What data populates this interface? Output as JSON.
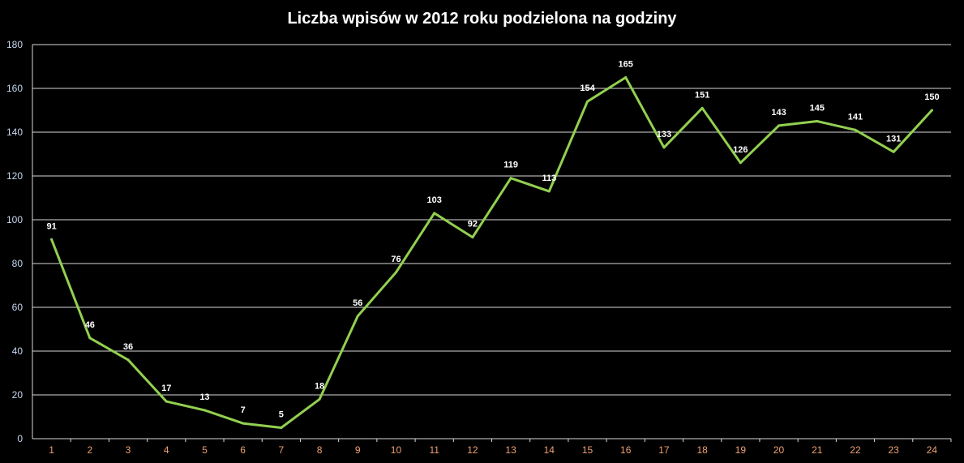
{
  "chart_data": {
    "type": "line",
    "title": "Liczba wpisów w 2012  roku podzielona na godziny",
    "xlabel": "",
    "ylabel": "",
    "ylim": [
      0,
      180
    ],
    "yticks": [
      "0",
      "20",
      "40",
      "60",
      "80",
      "100",
      "120",
      "140",
      "160",
      "180"
    ],
    "categories": [
      "1",
      "2",
      "3",
      "4",
      "5",
      "6",
      "7",
      "8",
      "9",
      "10",
      "11",
      "12",
      "13",
      "14",
      "15",
      "16",
      "17",
      "18",
      "19",
      "20",
      "21",
      "22",
      "23",
      "24"
    ],
    "series": [
      {
        "values": [
          91,
          46,
          36,
          17,
          13,
          7,
          5,
          18,
          56,
          76,
          103,
          92,
          119,
          113,
          154,
          165,
          133,
          151,
          126,
          143,
          145,
          141,
          131,
          150
        ]
      }
    ],
    "grid": true,
    "legend": "none",
    "colors": {
      "background": "#000000",
      "line": "#92d050",
      "grid": "#d9d9d9",
      "title": "#ffffff",
      "y_tick": "#c8d8f0",
      "x_tick": "#f0a070",
      "data_label": "#ffffff"
    }
  }
}
